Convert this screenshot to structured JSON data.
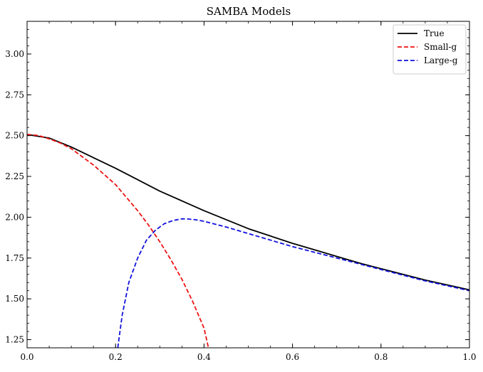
{
  "chart_data": {
    "type": "line",
    "title": "SAMBA Models",
    "xlabel": "",
    "ylabel": "",
    "xlim": [
      0.0,
      1.0
    ],
    "ylim": [
      1.2,
      3.2
    ],
    "xticks": [
      0.0,
      0.2,
      0.4,
      0.6,
      0.8,
      1.0
    ],
    "xtick_labels": [
      "0.0",
      "0.2",
      "0.4",
      "0.6",
      "0.8",
      "1.0"
    ],
    "yticks": [
      1.25,
      1.5,
      1.75,
      2.0,
      2.25,
      2.5,
      2.75,
      3.0
    ],
    "ytick_labels": [
      "1.25",
      "1.50",
      "1.75",
      "2.00",
      "2.25",
      "2.50",
      "2.75",
      "3.00"
    ],
    "grid": false,
    "legend_position": "top-right",
    "series": [
      {
        "name": "True",
        "color": "#000000",
        "dash": "solid",
        "x": [
          0.0,
          0.05,
          0.1,
          0.15,
          0.2,
          0.25,
          0.3,
          0.35,
          0.4,
          0.45,
          0.5,
          0.55,
          0.6,
          0.65,
          0.7,
          0.75,
          0.8,
          0.85,
          0.9,
          0.95,
          1.0
        ],
        "y": [
          2.507,
          2.485,
          2.43,
          2.365,
          2.3,
          2.23,
          2.16,
          2.1,
          2.04,
          1.985,
          1.93,
          1.885,
          1.84,
          1.8,
          1.76,
          1.72,
          1.685,
          1.65,
          1.615,
          1.585,
          1.555
        ]
      },
      {
        "name": "Small-g",
        "color": "#ee1111",
        "dash": "dashed",
        "x": [
          0.0,
          0.025,
          0.05,
          0.075,
          0.1,
          0.125,
          0.15,
          0.175,
          0.2,
          0.225,
          0.25,
          0.275,
          0.3,
          0.325,
          0.35,
          0.375,
          0.4,
          0.41
        ],
        "y": [
          2.507,
          2.501,
          2.48,
          2.455,
          2.42,
          2.37,
          2.32,
          2.26,
          2.2,
          2.12,
          2.04,
          1.95,
          1.85,
          1.74,
          1.62,
          1.48,
          1.32,
          1.2
        ]
      },
      {
        "name": "Large-g",
        "color": "#1111dd",
        "dash": "dashed",
        "x": [
          0.205,
          0.215,
          0.23,
          0.25,
          0.27,
          0.29,
          0.31,
          0.33,
          0.35,
          0.36,
          0.38,
          0.4,
          0.45,
          0.5,
          0.55,
          0.6,
          0.65,
          0.7,
          0.75,
          0.8,
          0.85,
          0.9,
          0.95,
          1.0
        ],
        "y": [
          1.2,
          1.4,
          1.6,
          1.75,
          1.86,
          1.92,
          1.96,
          1.98,
          1.99,
          1.99,
          1.985,
          1.975,
          1.94,
          1.9,
          1.86,
          1.82,
          1.785,
          1.75,
          1.715,
          1.68,
          1.645,
          1.61,
          1.58,
          1.55
        ]
      }
    ]
  }
}
